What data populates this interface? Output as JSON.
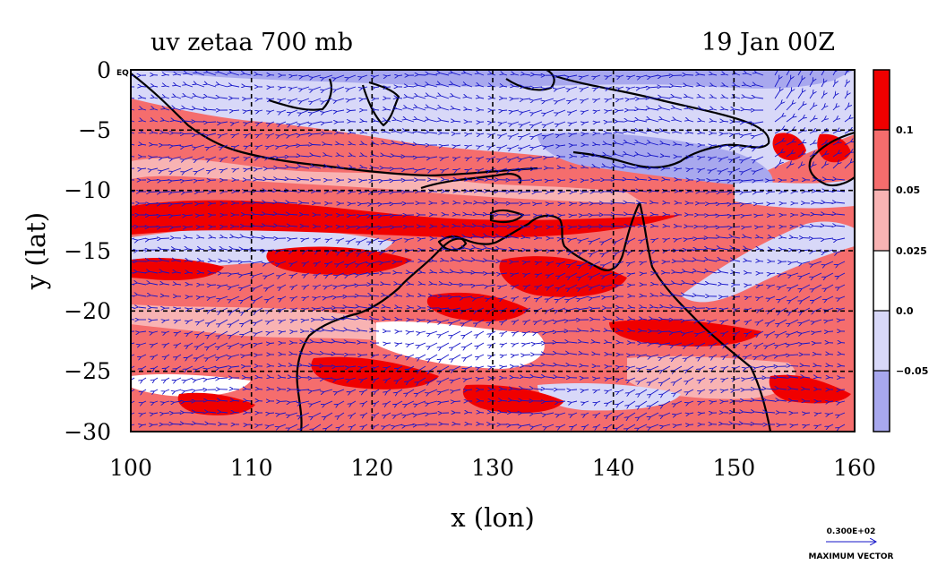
{
  "chart_data": {
    "type": "heatmap",
    "title": "uv zetaa 700 mb",
    "subtitle": "19 Jan 00Z",
    "xlabel": "x (lon)",
    "ylabel": "y (lat)",
    "xlim": [
      100,
      160
    ],
    "ylim": [
      -30,
      0
    ],
    "x_ticks": [
      "100",
      "110",
      "120",
      "130",
      "140",
      "150",
      "160"
    ],
    "y_ticks": [
      "0",
      "−5",
      "−10",
      "−15",
      "−20",
      "−25",
      "−30"
    ],
    "y_tick_suffix_top": "EQ",
    "grid": true,
    "colorbar": {
      "levels": [
        "0.1",
        "0.05",
        "0.025",
        "0.0",
        "−0.05"
      ],
      "colors": [
        "#f00000",
        "#f56d6d",
        "#f8b3b3",
        "#ffffff",
        "#d8d8f8",
        "#a8a8ee"
      ]
    },
    "vector_reference": {
      "value": "0.300E+02",
      "label": "MAXIMUM VECTOR"
    },
    "overlays": [
      "vorticity shading",
      "wind vectors",
      "coastlines"
    ]
  }
}
